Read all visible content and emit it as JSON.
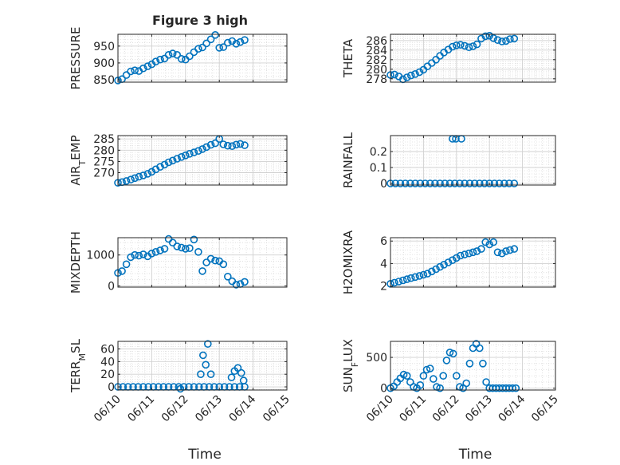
{
  "figure": {
    "title": "Figure 3 high"
  },
  "colors": {
    "marker": "#0072bd",
    "axis": "#262626",
    "grid": "#dcdcdc",
    "background": "#ffffff"
  },
  "chart_data": [
    {
      "id": "pressure",
      "type": "scatter",
      "ylabel": "PRESSURE",
      "xlabel": "",
      "ylim": [
        843,
        985
      ],
      "yticks": [
        850,
        900,
        950
      ],
      "ytick_labels": [
        "850",
        "900",
        "950"
      ],
      "grid": true,
      "marker": "open-circle",
      "show_xtick_labels": false,
      "x": [
        0.0,
        0.12,
        0.25,
        0.38,
        0.5,
        0.62,
        0.75,
        0.88,
        1.0,
        1.12,
        1.25,
        1.38,
        1.5,
        1.62,
        1.75,
        1.88,
        2.0,
        2.12,
        2.25,
        2.38,
        2.5,
        2.62,
        2.75,
        2.88,
        3.0,
        3.12,
        3.25,
        3.38,
        3.5,
        3.62,
        3.75
      ],
      "y": [
        848,
        852,
        864,
        875,
        878,
        876,
        884,
        890,
        896,
        904,
        910,
        913,
        924,
        928,
        924,
        912,
        910,
        920,
        932,
        942,
        946,
        958,
        970,
        983,
        945,
        947,
        960,
        965,
        957,
        962,
        968
      ]
    },
    {
      "id": "theta",
      "type": "scatter",
      "ylabel": "THETA",
      "xlabel": "",
      "ylim": [
        277.3,
        287.3
      ],
      "yticks": [
        278,
        280,
        282,
        284,
        286
      ],
      "ytick_labels": [
        "278",
        "280",
        "282",
        "284",
        "286"
      ],
      "grid": true,
      "marker": "open-circle",
      "show_xtick_labels": false,
      "x": [
        0.0,
        0.12,
        0.25,
        0.38,
        0.5,
        0.62,
        0.75,
        0.88,
        1.0,
        1.12,
        1.25,
        1.38,
        1.5,
        1.62,
        1.75,
        1.88,
        2.0,
        2.12,
        2.25,
        2.38,
        2.5,
        2.62,
        2.75,
        2.88,
        3.0,
        3.12,
        3.25,
        3.38,
        3.5,
        3.62,
        3.75
      ],
      "y": [
        278.8,
        278.9,
        278.5,
        277.9,
        278.3,
        278.7,
        279.0,
        279.4,
        279.9,
        280.6,
        281.3,
        282.0,
        282.8,
        283.5,
        284.1,
        284.7,
        285.0,
        285.1,
        284.9,
        284.6,
        284.8,
        285.2,
        286.4,
        286.9,
        287.0,
        286.5,
        286.1,
        285.8,
        285.9,
        286.3,
        286.4
      ]
    },
    {
      "id": "air_temp",
      "type": "scatter",
      "ylabel": "AIR_TEMP",
      "xlabel": "",
      "ylim": [
        264.5,
        286.5
      ],
      "yticks": [
        270,
        275,
        280,
        285
      ],
      "ytick_labels": [
        "270",
        "275",
        "280",
        "285"
      ],
      "grid": true,
      "marker": "open-circle",
      "show_xtick_labels": false,
      "x": [
        0.0,
        0.12,
        0.25,
        0.38,
        0.5,
        0.62,
        0.75,
        0.88,
        1.0,
        1.12,
        1.25,
        1.38,
        1.5,
        1.62,
        1.75,
        1.88,
        2.0,
        2.12,
        2.25,
        2.38,
        2.5,
        2.62,
        2.75,
        2.88,
        3.0,
        3.12,
        3.25,
        3.38,
        3.5,
        3.62,
        3.75
      ],
      "y": [
        265.5,
        265.8,
        266.3,
        266.9,
        267.6,
        268.2,
        268.8,
        269.5,
        270.4,
        271.5,
        272.6,
        273.6,
        274.6,
        275.4,
        276.2,
        277.0,
        277.7,
        278.4,
        279.0,
        279.7,
        280.5,
        281.4,
        282.4,
        283.1,
        285.0,
        282.6,
        282.0,
        281.8,
        282.5,
        282.8,
        282.2
      ]
    },
    {
      "id": "rainfall",
      "type": "scatter",
      "ylabel": "RAINFALL",
      "xlabel": "",
      "ylim": [
        -0.01,
        0.3
      ],
      "yticks": [
        0,
        0.1,
        0.2
      ],
      "ytick_labels": [
        "0",
        "0.1",
        "0.2"
      ],
      "grid": true,
      "marker": "open-circle",
      "show_xtick_labels": false,
      "x": [
        0.0,
        0.15,
        0.3,
        0.45,
        0.6,
        0.75,
        0.9,
        1.05,
        1.2,
        1.35,
        1.5,
        1.65,
        1.8,
        1.95,
        2.1,
        2.25,
        2.4,
        2.55,
        2.7,
        2.85,
        3.0,
        3.15,
        3.3,
        3.45,
        3.6,
        3.75,
        1.88,
        1.98,
        2.15
      ],
      "y": [
        0,
        0,
        0,
        0,
        0,
        0,
        0,
        0,
        0,
        0,
        0,
        0,
        0,
        0,
        0,
        0,
        0,
        0,
        0,
        0,
        0,
        0,
        0,
        0,
        0,
        0,
        0.28,
        0.28,
        0.28
      ]
    },
    {
      "id": "mixdepth",
      "type": "scatter",
      "ylabel": "MIXDEPTH",
      "xlabel": "",
      "ylim": [
        -40,
        1560
      ],
      "yticks": [
        0,
        1000
      ],
      "ytick_labels": [
        "0",
        "1000"
      ],
      "grid": true,
      "marker": "open-circle",
      "show_xtick_labels": false,
      "x": [
        0.0,
        0.12,
        0.25,
        0.38,
        0.5,
        0.62,
        0.75,
        0.88,
        1.0,
        1.12,
        1.25,
        1.38,
        1.5,
        1.62,
        1.75,
        1.88,
        2.0,
        2.12,
        2.25,
        2.38,
        2.5,
        2.62,
        2.75,
        2.88,
        3.0,
        3.12,
        3.25,
        3.38,
        3.5,
        3.62,
        3.75
      ],
      "y": [
        420,
        480,
        700,
        930,
        1000,
        980,
        1020,
        960,
        1050,
        1100,
        1150,
        1200,
        1520,
        1400,
        1280,
        1240,
        1200,
        1220,
        1500,
        1100,
        480,
        760,
        880,
        820,
        800,
        700,
        300,
        150,
        40,
        60,
        130
      ]
    },
    {
      "id": "h2omixra",
      "type": "scatter",
      "ylabel": "H2OMIXRA",
      "xlabel": "",
      "ylim": [
        1.9,
        6.3
      ],
      "yticks": [
        2,
        4,
        6
      ],
      "ytick_labels": [
        "2",
        "4",
        "6"
      ],
      "grid": true,
      "marker": "open-circle",
      "show_xtick_labels": false,
      "x": [
        0.0,
        0.12,
        0.25,
        0.38,
        0.5,
        0.62,
        0.75,
        0.88,
        1.0,
        1.12,
        1.25,
        1.38,
        1.5,
        1.62,
        1.75,
        1.88,
        2.0,
        2.12,
        2.25,
        2.38,
        2.5,
        2.62,
        2.75,
        2.88,
        3.0,
        3.12,
        3.25,
        3.38,
        3.5,
        3.62,
        3.75
      ],
      "y": [
        2.2,
        2.3,
        2.4,
        2.5,
        2.6,
        2.7,
        2.8,
        2.9,
        3.0,
        3.1,
        3.3,
        3.5,
        3.7,
        3.9,
        4.1,
        4.3,
        4.5,
        4.7,
        4.8,
        4.9,
        5.0,
        5.1,
        5.3,
        5.9,
        5.7,
        5.9,
        5.0,
        4.9,
        5.1,
        5.2,
        5.3
      ]
    },
    {
      "id": "terr_msl",
      "type": "scatter",
      "ylabel": "TERR_MSL",
      "xlabel": "Time",
      "ylim": [
        -5,
        72
      ],
      "yticks": [
        0,
        20,
        40,
        60
      ],
      "ytick_labels": [
        "0",
        "20",
        "40",
        "60"
      ],
      "grid": true,
      "marker": "open-circle",
      "show_xtick_labels": true,
      "xlim": [
        0,
        5
      ],
      "xticks": [
        0,
        1,
        2,
        3,
        4,
        5
      ],
      "xtick_labels": [
        "06/10",
        "06/11",
        "06/12",
        "06/13",
        "06/14",
        "06/15"
      ],
      "x": [
        0.0,
        0.15,
        0.3,
        0.45,
        0.6,
        0.75,
        0.9,
        1.05,
        1.2,
        1.35,
        1.5,
        1.65,
        1.8,
        1.95,
        2.1,
        2.25,
        2.4,
        2.55,
        2.7,
        2.85,
        3.0,
        3.15,
        3.3,
        3.45,
        3.6,
        3.75,
        2.45,
        2.52,
        2.6,
        2.66,
        2.75,
        3.36,
        3.45,
        3.55,
        3.65,
        3.72,
        1.85
      ],
      "y": [
        0,
        0,
        0,
        0,
        0,
        0,
        0,
        0,
        0,
        0,
        0,
        0,
        0,
        0,
        0,
        0,
        0,
        0,
        0,
        0,
        0,
        0,
        0,
        0,
        0,
        0,
        20,
        50,
        35,
        68,
        20,
        15,
        25,
        30,
        22,
        10,
        -3
      ]
    },
    {
      "id": "sun_flux",
      "type": "scatter",
      "ylabel": "SUN_FLUX",
      "xlabel": "Time",
      "ylim": [
        -30,
        760
      ],
      "yticks": [
        0,
        500
      ],
      "ytick_labels": [
        "0",
        "500"
      ],
      "grid": true,
      "marker": "open-circle",
      "show_xtick_labels": true,
      "xlim": [
        0,
        5
      ],
      "xticks": [
        0,
        1,
        2,
        3,
        4,
        5
      ],
      "xtick_labels": [
        "06/10",
        "06/11",
        "06/12",
        "06/13",
        "06/14",
        "06/15"
      ],
      "x": [
        0.0,
        0.1,
        0.2,
        0.3,
        0.4,
        0.5,
        0.6,
        0.7,
        0.8,
        0.9,
        1.0,
        1.1,
        1.2,
        1.3,
        1.4,
        1.5,
        1.6,
        1.7,
        1.8,
        1.9,
        2.0,
        2.1,
        2.2,
        2.3,
        2.4,
        2.5,
        2.6,
        2.7,
        2.8,
        2.9,
        3.0,
        3.1,
        3.2,
        3.3,
        3.4,
        3.5,
        3.6,
        3.7,
        3.8
      ],
      "y": [
        0,
        30,
        100,
        160,
        220,
        200,
        100,
        20,
        0,
        50,
        200,
        300,
        320,
        150,
        20,
        0,
        200,
        450,
        580,
        560,
        200,
        20,
        0,
        80,
        400,
        650,
        720,
        650,
        400,
        100,
        0,
        0,
        0,
        0,
        0,
        0,
        0,
        0,
        0
      ]
    }
  ]
}
